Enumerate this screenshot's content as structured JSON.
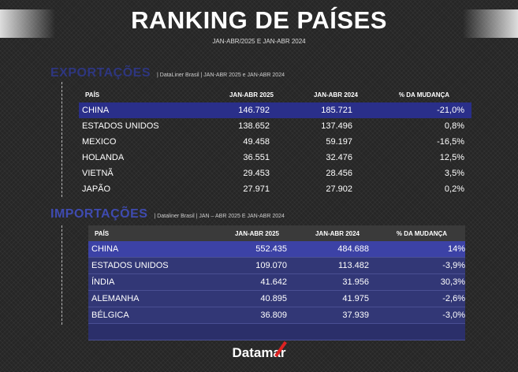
{
  "header": {
    "title": "RANKING DE PAÍSES",
    "subtitle": "JAN-ABR/2025 E JAN-ABR 2024"
  },
  "exports": {
    "title": "EXPORTAÇÕES",
    "note": "| DataLiner Brasil | JAN-ABR 2025 e JAN-ABR 2024",
    "headers": [
      "PAÍS",
      "JAN-ABR 2025",
      "JAN-ABR 2024",
      "% DA MUDANÇA"
    ],
    "rows": [
      [
        "CHINA",
        "146.792",
        "185.721",
        "-21,0%"
      ],
      [
        "ESTADOS UNIDOS",
        "138.652",
        "137.496",
        "0,8%"
      ],
      [
        "MEXICO",
        "49.458",
        "59.197",
        "-16,5%"
      ],
      [
        "HOLANDA",
        "36.551",
        "32.476",
        "12,5%"
      ],
      [
        "VIETNÃ",
        "29.453",
        "28.456",
        "3,5%"
      ],
      [
        "JAPÃO",
        "27.971",
        "27.902",
        "0,2%"
      ]
    ]
  },
  "imports": {
    "title": "IMPORTAÇÕES",
    "note": "| Dataliner Brasil | JAN – ABR 2025 E JAN-ABR 2024",
    "headers": [
      "PAÍS",
      "JAN-ABR 2025",
      "JAN-ABR 2024",
      "% DA MUDANÇA"
    ],
    "rows": [
      [
        "CHINA",
        "552.435",
        "484.688",
        "14%"
      ],
      [
        "ESTADOS UNIDOS",
        "109.070",
        "113.482",
        "-3,9%"
      ],
      [
        "ÍNDIA",
        "41.642",
        "31.956",
        "30,3%"
      ],
      [
        "ALEMANHA",
        "40.895",
        "41.975",
        "-2,6%"
      ],
      [
        "BÉLGICA",
        "36.809",
        "37.939",
        "-3,0%"
      ]
    ]
  },
  "footer": {
    "logo": "Datamar"
  },
  "colors": {
    "accent": "#3f4bb0",
    "row_highlight": "#2a2f8a",
    "logo_slash": "#dd2222"
  }
}
